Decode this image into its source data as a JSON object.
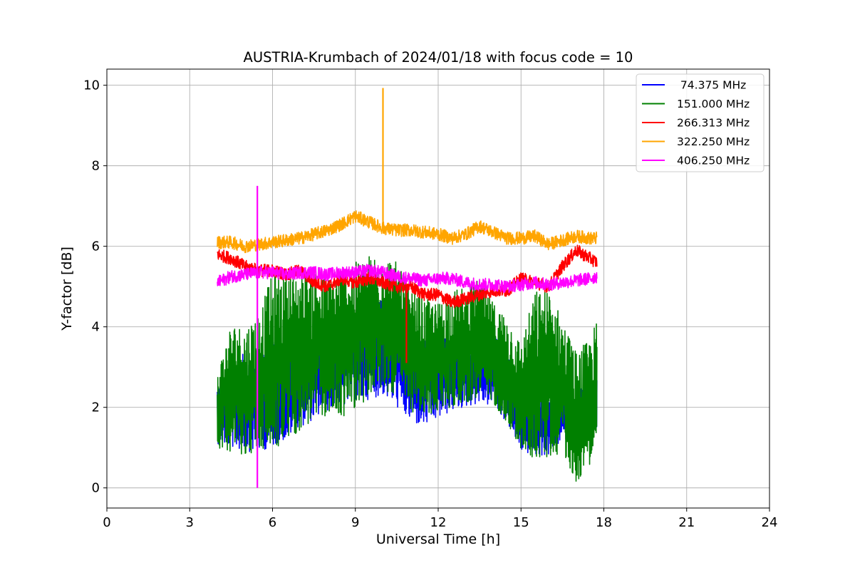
{
  "chart_data": {
    "type": "line",
    "title": "AUSTRIA-Krumbach of 2024/01/18 with focus code = 10",
    "xlabel": "Universal Time [h]",
    "ylabel": "Y-factor [dB]",
    "xlim": [
      0,
      24
    ],
    "ylim": [
      -0.5,
      10.4
    ],
    "xticks": [
      0,
      3,
      6,
      9,
      12,
      15,
      18,
      21,
      24
    ],
    "yticks": [
      0,
      2,
      4,
      6,
      8,
      10
    ],
    "grid": true,
    "legend_position": "top-right",
    "series": [
      {
        "name": " 74.375 MHz",
        "color": "#0000ff",
        "x": [
          4.0,
          4.5,
          5.0,
          5.5,
          6.0,
          6.5,
          7.0,
          7.5,
          8.0,
          8.5,
          9.0,
          9.5,
          10.0,
          10.5,
          11.0,
          11.5,
          12.0,
          12.5,
          13.0,
          13.5,
          14.0,
          14.5,
          15.0,
          15.5,
          16.0,
          16.5,
          17.0,
          17.5,
          17.75
        ],
        "low": [
          1.1,
          1.0,
          0.9,
          0.9,
          1.0,
          1.2,
          1.5,
          1.7,
          1.9,
          2.0,
          2.1,
          2.2,
          2.3,
          2.0,
          1.6,
          1.5,
          1.7,
          1.9,
          2.0,
          2.1,
          2.0,
          1.6,
          0.9,
          0.8,
          0.8,
          1.2,
          1.2,
          1.1,
          1.4
        ],
        "high": [
          2.6,
          2.9,
          3.4,
          3.2,
          3.7,
          3.5,
          3.8,
          3.9,
          4.1,
          4.3,
          4.4,
          4.5,
          4.7,
          4.4,
          4.0,
          3.8,
          3.7,
          3.8,
          3.9,
          4.1,
          3.9,
          3.3,
          2.5,
          2.2,
          2.2,
          2.4,
          2.5,
          2.4,
          2.8
        ]
      },
      {
        "name": "151.000 MHz",
        "color": "#008000",
        "x": [
          4.0,
          4.5,
          5.0,
          5.5,
          6.0,
          6.5,
          7.0,
          7.5,
          8.0,
          8.5,
          9.0,
          9.5,
          10.0,
          10.5,
          11.0,
          11.5,
          12.0,
          12.5,
          13.0,
          13.5,
          14.0,
          14.5,
          15.0,
          15.5,
          16.0,
          16.5,
          17.0,
          17.5,
          17.75
        ],
        "low": [
          1.0,
          0.9,
          0.8,
          0.9,
          0.9,
          1.1,
          1.4,
          1.6,
          1.8,
          1.7,
          2.0,
          2.2,
          2.4,
          2.3,
          1.9,
          1.7,
          1.9,
          2.0,
          2.1,
          2.2,
          2.1,
          1.6,
          0.9,
          0.7,
          0.7,
          0.9,
          0.1,
          0.6,
          1.0
        ],
        "high": [
          2.9,
          4.1,
          4.0,
          4.4,
          5.3,
          5.4,
          5.4,
          5.5,
          5.2,
          5.5,
          5.6,
          5.8,
          5.9,
          5.6,
          4.9,
          4.7,
          4.6,
          4.9,
          5.0,
          5.2,
          4.6,
          4.3,
          3.6,
          4.9,
          5.0,
          4.2,
          3.4,
          3.7,
          4.2
        ]
      },
      {
        "name": "266.313 MHz",
        "color": "#ff0000",
        "x": [
          4.0,
          4.5,
          5.0,
          5.5,
          6.0,
          6.5,
          7.0,
          7.5,
          8.0,
          8.5,
          9.0,
          9.5,
          10.0,
          10.5,
          11.0,
          11.5,
          12.0,
          12.5,
          13.0,
          13.5,
          14.0,
          14.5,
          15.0,
          15.5,
          16.0,
          16.5,
          17.0,
          17.5,
          17.75
        ],
        "y": [
          5.8,
          5.7,
          5.5,
          5.4,
          5.4,
          5.3,
          5.4,
          5.1,
          5.0,
          5.2,
          5.1,
          5.2,
          5.1,
          5.0,
          5.0,
          4.8,
          4.8,
          4.6,
          4.7,
          4.8,
          4.9,
          4.9,
          5.2,
          5.1,
          5.0,
          5.5,
          5.9,
          5.7,
          5.6
        ],
        "spike_x": 10.85,
        "spike_y": 3.1
      },
      {
        "name": "322.250 MHz",
        "color": "#ffa500",
        "x": [
          4.0,
          4.5,
          5.0,
          5.5,
          6.0,
          6.5,
          7.0,
          7.5,
          8.0,
          8.5,
          9.0,
          9.5,
          10.0,
          10.5,
          11.0,
          11.5,
          12.0,
          12.5,
          13.0,
          13.5,
          14.0,
          14.5,
          15.0,
          15.5,
          16.0,
          16.5,
          17.0,
          17.5,
          17.75
        ],
        "y": [
          6.1,
          6.1,
          6.0,
          6.05,
          6.1,
          6.15,
          6.2,
          6.3,
          6.4,
          6.55,
          6.75,
          6.6,
          6.45,
          6.4,
          6.4,
          6.35,
          6.3,
          6.2,
          6.3,
          6.5,
          6.35,
          6.2,
          6.2,
          6.25,
          6.05,
          6.15,
          6.25,
          6.2,
          6.2
        ],
        "spike_x": 10.0,
        "spike_y": 9.93
      },
      {
        "name": "406.250 MHz",
        "color": "#ff00ff",
        "x": [
          4.0,
          4.5,
          5.0,
          5.5,
          6.0,
          6.5,
          7.0,
          7.5,
          8.0,
          8.5,
          9.0,
          9.5,
          10.0,
          10.5,
          11.0,
          11.5,
          12.0,
          12.5,
          13.0,
          13.5,
          14.0,
          14.5,
          15.0,
          15.5,
          16.0,
          16.5,
          17.0,
          17.5,
          17.75
        ],
        "y": [
          5.1,
          5.25,
          5.3,
          5.35,
          5.35,
          5.3,
          5.35,
          5.35,
          5.3,
          5.35,
          5.35,
          5.4,
          5.35,
          5.25,
          5.2,
          5.15,
          5.2,
          5.2,
          5.1,
          5.05,
          5.05,
          5.0,
          5.05,
          5.1,
          5.05,
          5.1,
          5.15,
          5.2,
          5.25
        ],
        "spike_x": 5.45,
        "spike_low": 0.0,
        "spike_high": 7.5
      }
    ]
  }
}
